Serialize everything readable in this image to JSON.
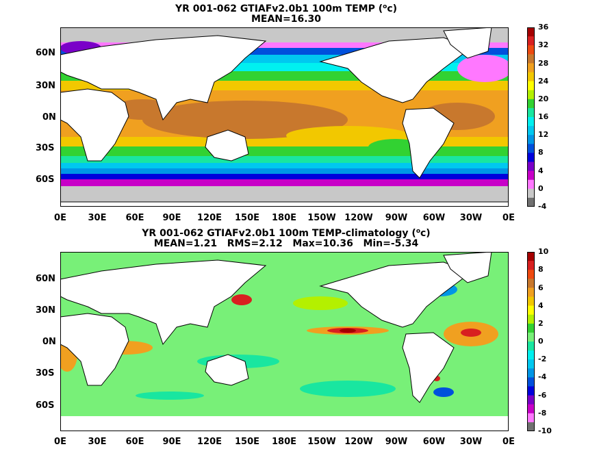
{
  "top_panel": {
    "title_main": "YR 001-062 GTIAFv2.0b1 100m TEMP (",
    "title_unit_sup": "o",
    "title_unit_tail": "c)",
    "stats": "MEAN=16.30",
    "colorbar_labels": [
      "36",
      "32",
      "28",
      "24",
      "20",
      "16",
      "12",
      "8",
      "4",
      "0",
      "-4"
    ],
    "colorbar_colors": [
      "#a50000",
      "#d82020",
      "#ee4a10",
      "#c8782d",
      "#f0a020",
      "#f2c800",
      "#ffff00",
      "#b4f000",
      "#32d232",
      "#19e6a0",
      "#00f0f0",
      "#00c8f0",
      "#0096e6",
      "#0050dc",
      "#0000dc",
      "#7a00c8",
      "#c800c8",
      "#ff78ff",
      "#c8c8c8",
      "#707070"
    ]
  },
  "bottom_panel": {
    "title_main": "YR 001-062 GTIAFv2.0b1 100m TEMP-climatology (",
    "title_unit_sup": "o",
    "title_unit_tail": "c)",
    "stats": "MEAN=1.21   RMS=2.12   Max=10.36   Min=-5.34",
    "colorbar_labels": [
      "10",
      "8",
      "6",
      "4",
      "2",
      "0",
      "-2",
      "-4",
      "-6",
      "-8",
      "-10"
    ],
    "colorbar_colors": [
      "#a50000",
      "#d82020",
      "#ee4a10",
      "#c8782d",
      "#f0a020",
      "#f2c800",
      "#ffff00",
      "#b4f000",
      "#32d232",
      "#78f078",
      "#19e6a0",
      "#00f0f0",
      "#00c8f0",
      "#0096e6",
      "#0050dc",
      "#0000dc",
      "#7a00c8",
      "#c800c8",
      "#ff78ff",
      "#707070"
    ]
  },
  "lat_labels": [
    "60N",
    "30N",
    "0N",
    "30S",
    "60S"
  ],
  "lon_labels": [
    "0E",
    "30E",
    "60E",
    "90E",
    "120E",
    "150E",
    "180E",
    "150W",
    "120W",
    "90W",
    "60W",
    "30W",
    "0E"
  ]
}
